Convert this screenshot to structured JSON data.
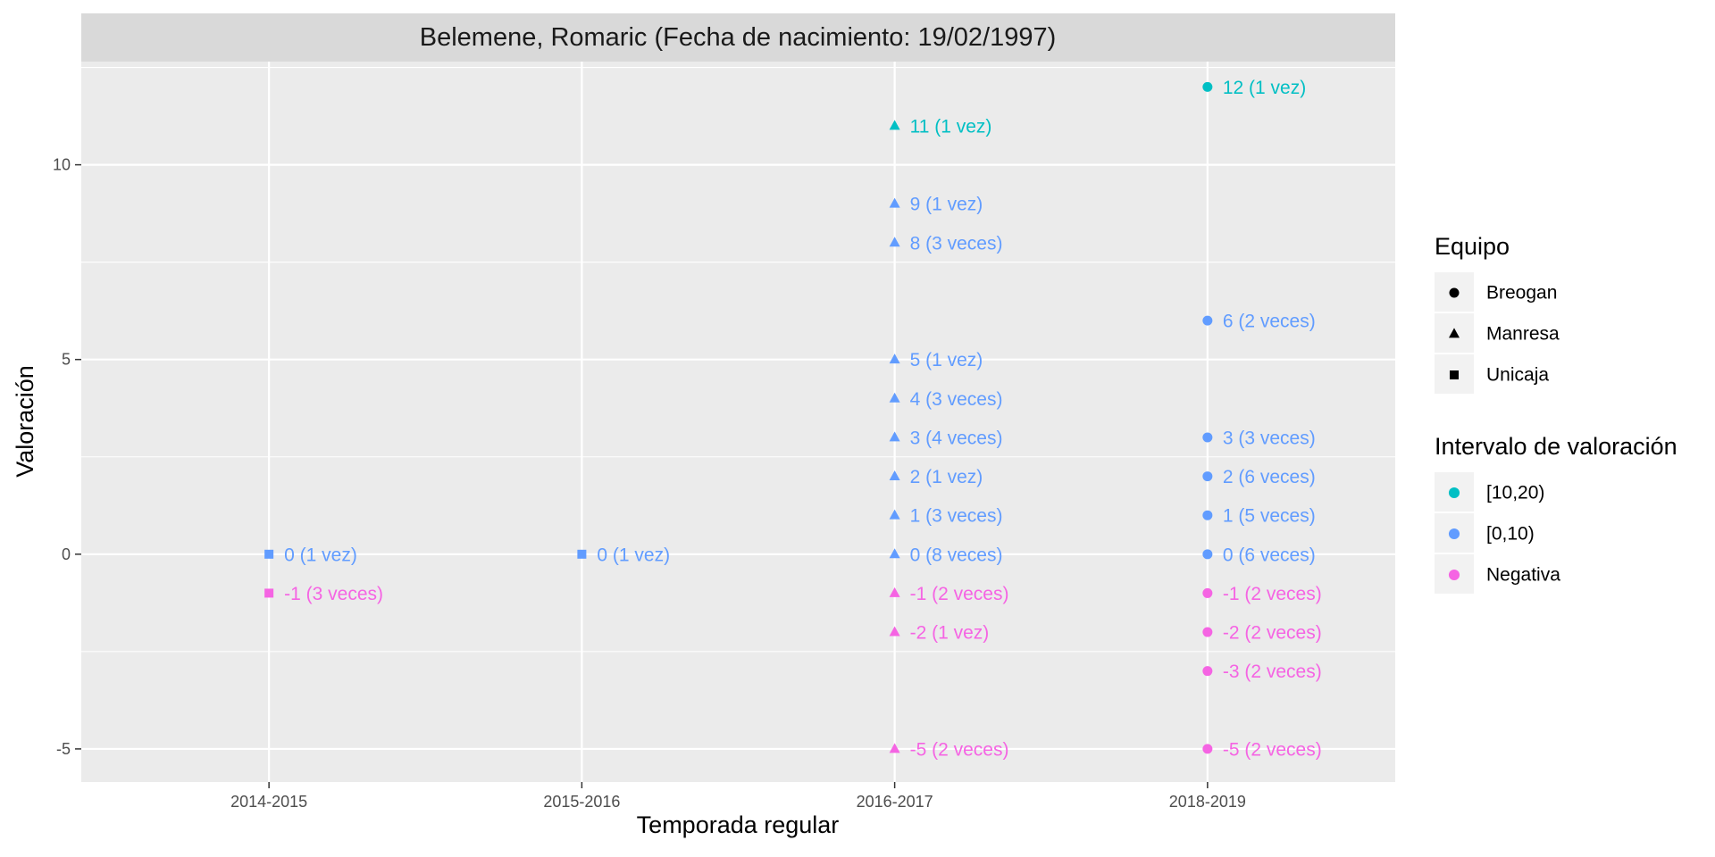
{
  "chart_data": {
    "type": "scatter",
    "title": "Belemene, Romaric (Fecha de nacimiento: 19/02/1997)",
    "xlabel": "Temporada regular",
    "ylabel": "Valoración",
    "categories": [
      "2014-2015",
      "2015-2016",
      "2016-2017",
      "2018-2019"
    ],
    "yticks": [
      -5,
      0,
      5,
      10
    ],
    "ylim": [
      -5.85,
      12.65
    ],
    "grid": true,
    "legend_position": "right",
    "legends": [
      {
        "title": "Equipo",
        "kind": "shape",
        "entries": [
          {
            "label": "Breogan",
            "shape": "circle"
          },
          {
            "label": "Manresa",
            "shape": "triangle"
          },
          {
            "label": "Unicaja",
            "shape": "square"
          }
        ]
      },
      {
        "title": "Intervalo de valoración",
        "kind": "color",
        "entries": [
          {
            "label": "[10,20)",
            "color": "#00bfc4"
          },
          {
            "label": "[0,10)",
            "color": "#619cff"
          },
          {
            "label": "Negativa",
            "color": "#f564e3"
          }
        ]
      }
    ],
    "points": [
      {
        "x": "2014-2015",
        "y": 0,
        "team": "Unicaja",
        "interval": "[0,10)",
        "label": "0 (1 vez)"
      },
      {
        "x": "2014-2015",
        "y": -1,
        "team": "Unicaja",
        "interval": "Negativa",
        "label": "-1 (3 veces)"
      },
      {
        "x": "2015-2016",
        "y": 0,
        "team": "Unicaja",
        "interval": "[0,10)",
        "label": "0 (1 vez)"
      },
      {
        "x": "2016-2017",
        "y": 11,
        "team": "Manresa",
        "interval": "[10,20)",
        "label": "11 (1 vez)"
      },
      {
        "x": "2016-2017",
        "y": 9,
        "team": "Manresa",
        "interval": "[0,10)",
        "label": "9 (1 vez)"
      },
      {
        "x": "2016-2017",
        "y": 8,
        "team": "Manresa",
        "interval": "[0,10)",
        "label": "8 (3 veces)"
      },
      {
        "x": "2016-2017",
        "y": 5,
        "team": "Manresa",
        "interval": "[0,10)",
        "label": "5 (1 vez)"
      },
      {
        "x": "2016-2017",
        "y": 4,
        "team": "Manresa",
        "interval": "[0,10)",
        "label": "4 (3 veces)"
      },
      {
        "x": "2016-2017",
        "y": 3,
        "team": "Manresa",
        "interval": "[0,10)",
        "label": "3 (4 veces)"
      },
      {
        "x": "2016-2017",
        "y": 2,
        "team": "Manresa",
        "interval": "[0,10)",
        "label": "2 (1 vez)"
      },
      {
        "x": "2016-2017",
        "y": 1,
        "team": "Manresa",
        "interval": "[0,10)",
        "label": "1 (3 veces)"
      },
      {
        "x": "2016-2017",
        "y": 0,
        "team": "Manresa",
        "interval": "[0,10)",
        "label": "0 (8 veces)"
      },
      {
        "x": "2016-2017",
        "y": -1,
        "team": "Manresa",
        "interval": "Negativa",
        "label": "-1 (2 veces)"
      },
      {
        "x": "2016-2017",
        "y": -2,
        "team": "Manresa",
        "interval": "Negativa",
        "label": "-2 (1 vez)"
      },
      {
        "x": "2016-2017",
        "y": -5,
        "team": "Manresa",
        "interval": "Negativa",
        "label": "-5 (2 veces)"
      },
      {
        "x": "2018-2019",
        "y": 12,
        "team": "Breogan",
        "interval": "[10,20)",
        "label": "12 (1 vez)"
      },
      {
        "x": "2018-2019",
        "y": 6,
        "team": "Breogan",
        "interval": "[0,10)",
        "label": "6 (2 veces)"
      },
      {
        "x": "2018-2019",
        "y": 3,
        "team": "Breogan",
        "interval": "[0,10)",
        "label": "3 (3 veces)"
      },
      {
        "x": "2018-2019",
        "y": 2,
        "team": "Breogan",
        "interval": "[0,10)",
        "label": "2 (6 veces)"
      },
      {
        "x": "2018-2019",
        "y": 1,
        "team": "Breogan",
        "interval": "[0,10)",
        "label": "1 (5 veces)"
      },
      {
        "x": "2018-2019",
        "y": 0,
        "team": "Breogan",
        "interval": "[0,10)",
        "label": "0 (6 veces)"
      },
      {
        "x": "2018-2019",
        "y": -1,
        "team": "Breogan",
        "interval": "Negativa",
        "label": "-1 (2 veces)"
      },
      {
        "x": "2018-2019",
        "y": -2,
        "team": "Breogan",
        "interval": "Negativa",
        "label": "-2 (2 veces)"
      },
      {
        "x": "2018-2019",
        "y": -3,
        "team": "Breogan",
        "interval": "Negativa",
        "label": "-3 (2 veces)"
      },
      {
        "x": "2018-2019",
        "y": -5,
        "team": "Breogan",
        "interval": "Negativa",
        "label": "-5 (2 veces)"
      }
    ]
  }
}
